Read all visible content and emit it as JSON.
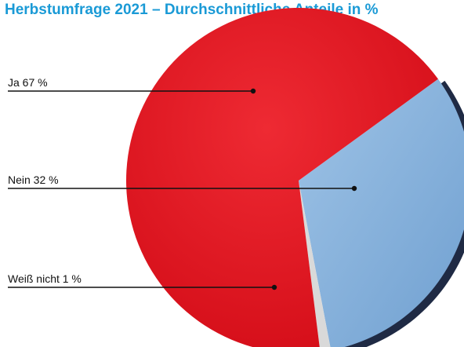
{
  "chart_data": {
    "type": "pie",
    "title": "Herbstumfrage 2021 – Durchschnittliche Anteile in %",
    "slices": [
      {
        "label": "Ja",
        "value": 67,
        "display": "Ja  67 %",
        "color": "#e30f1b"
      },
      {
        "label": "Nein",
        "value": 32,
        "display": "Nein  32 %",
        "color": "#8eb8e0"
      },
      {
        "label": "Weiß nicht",
        "value": 1,
        "display": "Weiß nicht  1 %",
        "color": "#d9d9d9"
      }
    ],
    "legend": "left",
    "grid": false
  },
  "colors": {
    "title": "#1a9ad6",
    "leader_line": "#111111",
    "ja_highlight": "#ef3a3e",
    "nein_shadow": "#1f2a44"
  }
}
